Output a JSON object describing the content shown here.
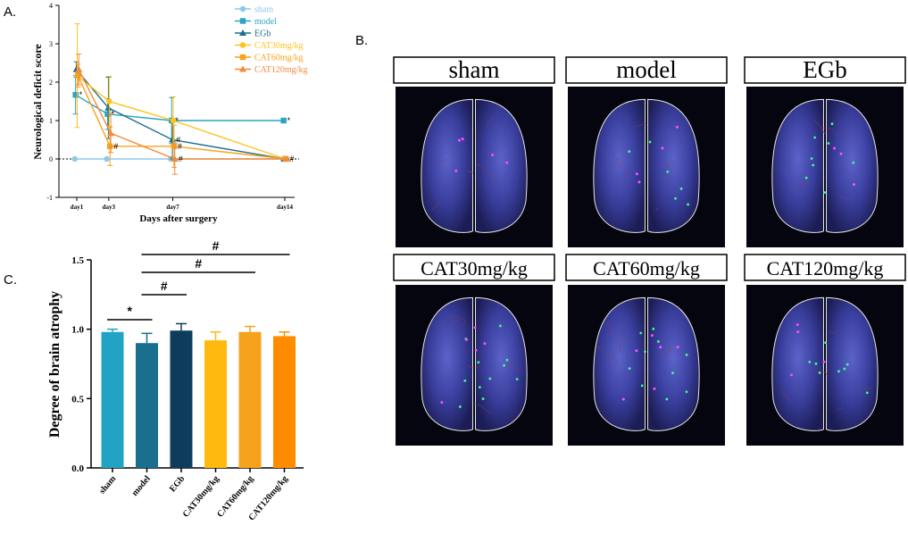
{
  "panel_labels": {
    "a": "A.",
    "b": "B.",
    "c": "C."
  },
  "chart_data": [
    {
      "type": "line",
      "title": "",
      "xlabel": "Days after surgery",
      "ylabel": "Neurological deficit score",
      "categories": [
        "day1",
        "day3",
        "day7",
        "day14"
      ],
      "x": [
        1,
        3,
        7,
        14
      ],
      "ylim": [
        -1,
        4
      ],
      "yticks": [
        -1,
        0,
        1,
        2,
        3,
        4
      ],
      "legend_position": "top-right",
      "reference_line": 0,
      "series": [
        {
          "name": "sham",
          "color": "#8ec9ea",
          "marker": "circle",
          "values": [
            0,
            0,
            0,
            0
          ],
          "err": [
            0,
            0,
            0,
            0
          ],
          "marks": [
            "",
            "",
            "",
            ""
          ]
        },
        {
          "name": "model",
          "color": "#2aa3c4",
          "marker": "square",
          "values": [
            1.67,
            1.17,
            1.0,
            1.0
          ],
          "err": [
            0.5,
            0.4,
            0.6,
            0
          ],
          "marks": [
            "*",
            "*",
            "*",
            "*"
          ]
        },
        {
          "name": "EGb",
          "color": "#1f6e8c",
          "marker": "triangle",
          "values": [
            2.33,
            1.33,
            0.5,
            0.0
          ],
          "err": [
            0.2,
            0.8,
            0.5,
            0
          ],
          "marks": [
            "",
            "",
            "#",
            ""
          ]
        },
        {
          "name": "CAT30mg/kg",
          "color": "#ffc21a",
          "marker": "circle",
          "values": [
            2.17,
            1.5,
            1.0,
            0.0
          ],
          "err": [
            1.35,
            0.65,
            0.62,
            0
          ],
          "marks": [
            "",
            "",
            "",
            ""
          ]
        },
        {
          "name": "CAT60mg/kg",
          "color": "#f7a21c",
          "marker": "square",
          "values": [
            2.17,
            0.33,
            0.33,
            0.0
          ],
          "err": [
            0.3,
            0.5,
            0.55,
            0
          ],
          "marks": [
            "",
            "#",
            "#",
            "#"
          ]
        },
        {
          "name": "CAT120mg/kg",
          "color": "#f48a3a",
          "marker": "triangle",
          "values": [
            2.33,
            0.67,
            0.0,
            0.0
          ],
          "err": [
            0.4,
            0.5,
            0.4,
            0
          ],
          "marks": [
            "",
            "",
            "#",
            ""
          ]
        }
      ]
    },
    {
      "type": "bar",
      "title": "",
      "xlabel": "",
      "ylabel": "Degree of brain atrophy",
      "categories": [
        "sham",
        "model",
        "EGb",
        "CAT30mg/kg",
        "CAT60mg/kg",
        "CAT120mg/kg"
      ],
      "values": [
        0.98,
        0.9,
        0.99,
        0.92,
        0.98,
        0.95
      ],
      "err": [
        0.02,
        0.07,
        0.05,
        0.06,
        0.04,
        0.03
      ],
      "colors": [
        "#22a3c4",
        "#1a6e8e",
        "#0e3c5d",
        "#ffb90f",
        "#f7a21c",
        "#ff8c00"
      ],
      "ylim": [
        0,
        1.5
      ],
      "yticks": [
        "0.0",
        "0.5",
        "1.0",
        "1.5"
      ],
      "significance": [
        {
          "from": "sham",
          "to": "model",
          "label": "*"
        },
        {
          "from": "model",
          "to": "EGb",
          "label": "#"
        },
        {
          "from": "model",
          "to": "CAT60mg/kg",
          "label": "#"
        },
        {
          "from": "model",
          "to": "CAT120mg/kg",
          "label": "#"
        }
      ]
    }
  ],
  "brain_panels": [
    {
      "label": "sham"
    },
    {
      "label": "model"
    },
    {
      "label": "EGb"
    },
    {
      "label": "CAT30mg/kg"
    },
    {
      "label": "CAT60mg/kg"
    },
    {
      "label": "CAT120mg/kg"
    }
  ]
}
